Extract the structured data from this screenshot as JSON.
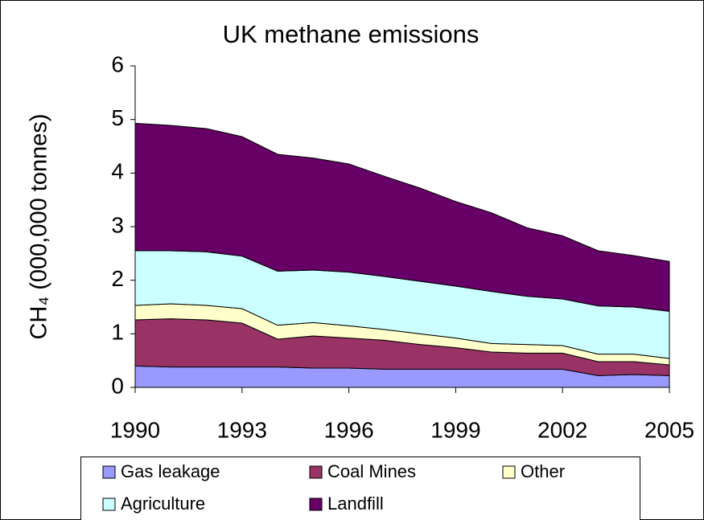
{
  "chart_data": {
    "type": "stacked_area",
    "title": "UK methane emissions",
    "y_label": "CH₄ (000,000 tonnes)",
    "x": [
      1990,
      1991,
      1992,
      1993,
      1994,
      1995,
      1996,
      1997,
      1998,
      1999,
      2000,
      2001,
      2002,
      2003,
      2004,
      2005
    ],
    "xlim": [
      1990,
      2005
    ],
    "xticks": [
      1990,
      1993,
      1996,
      1999,
      2002,
      2005
    ],
    "ylim": [
      0,
      6
    ],
    "yticks": [
      0,
      1,
      2,
      3,
      4,
      5,
      6
    ],
    "series": [
      {
        "name": "Gas leakage",
        "color": "#9999ff",
        "values": [
          0.4,
          0.38,
          0.38,
          0.38,
          0.38,
          0.36,
          0.36,
          0.34,
          0.34,
          0.34,
          0.34,
          0.34,
          0.34,
          0.22,
          0.24,
          0.22
        ]
      },
      {
        "name": "Coal Mines",
        "color": "#993366",
        "values": [
          0.86,
          0.9,
          0.88,
          0.82,
          0.52,
          0.6,
          0.56,
          0.54,
          0.46,
          0.4,
          0.32,
          0.3,
          0.3,
          0.26,
          0.24,
          0.2
        ]
      },
      {
        "name": "Other",
        "color": "#ffffcc",
        "values": [
          0.27,
          0.28,
          0.27,
          0.27,
          0.26,
          0.25,
          0.23,
          0.2,
          0.2,
          0.18,
          0.16,
          0.16,
          0.14,
          0.14,
          0.14,
          0.12
        ]
      },
      {
        "name": "Agriculture",
        "color": "#ccffff",
        "values": [
          1.02,
          0.99,
          1.0,
          0.98,
          1.01,
          0.98,
          1.0,
          0.99,
          0.98,
          0.97,
          0.97,
          0.9,
          0.87,
          0.9,
          0.88,
          0.88
        ]
      },
      {
        "name": "Landfill",
        "color": "#660066",
        "values": [
          2.38,
          2.34,
          2.3,
          2.23,
          2.18,
          2.09,
          2.02,
          1.87,
          1.74,
          1.58,
          1.47,
          1.28,
          1.18,
          1.03,
          0.96,
          0.93
        ]
      }
    ]
  }
}
